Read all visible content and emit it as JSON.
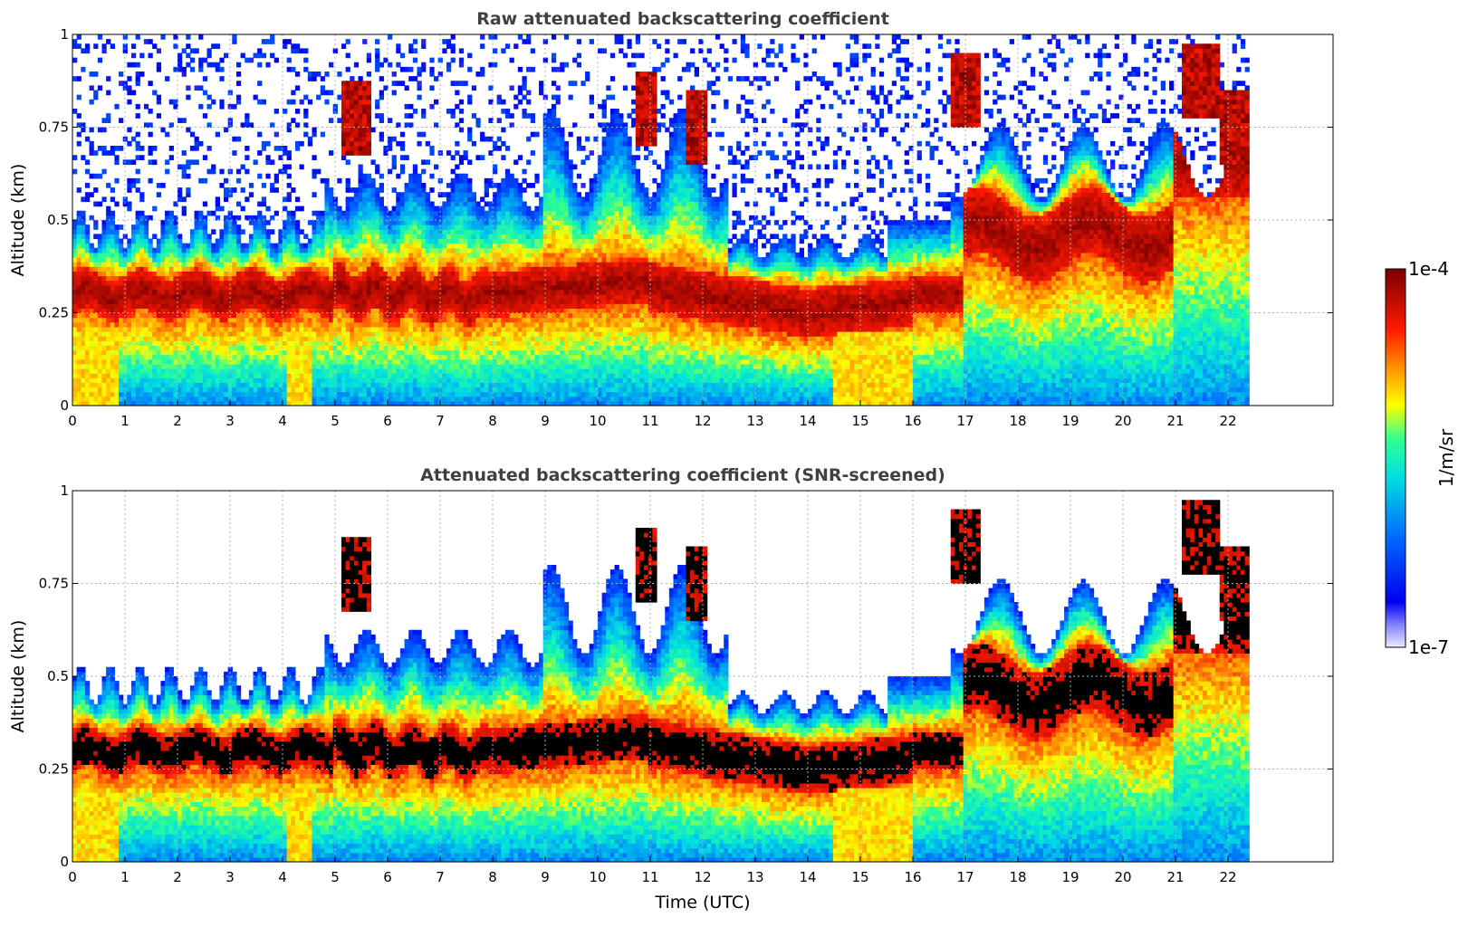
{
  "chart_data": [
    {
      "type": "heatmap",
      "title": "Raw attenuated backscattering coefficient",
      "xlabel": "",
      "ylabel": "Altitude (km)",
      "xlim": [
        0,
        24
      ],
      "ylim": [
        0,
        1
      ],
      "x_ticks": [
        "0",
        "1",
        "2",
        "3",
        "4",
        "5",
        "6",
        "7",
        "8",
        "9",
        "10",
        "11",
        "12",
        "13",
        "14",
        "15",
        "16",
        "17",
        "18",
        "19",
        "20",
        "21",
        "22"
      ],
      "y_ticks": [
        "0",
        "0.25",
        "0.5",
        "0.75",
        "1"
      ],
      "data_end_hour": 22.4,
      "grid": true,
      "screened": false
    },
    {
      "type": "heatmap",
      "title": "Attenuated backscattering coefficient (SNR-screened)",
      "xlabel": "Time (UTC)",
      "ylabel": "Altitude (km)",
      "xlim": [
        0,
        24
      ],
      "ylim": [
        0,
        1
      ],
      "x_ticks": [
        "0",
        "1",
        "2",
        "3",
        "4",
        "5",
        "6",
        "7",
        "8",
        "9",
        "10",
        "11",
        "12",
        "13",
        "14",
        "15",
        "16",
        "17",
        "18",
        "19",
        "20",
        "21",
        "22"
      ],
      "y_ticks": [
        "0",
        "0.25",
        "0.5",
        "0.75",
        "1"
      ],
      "data_end_hour": 22.4,
      "grid": true,
      "screened": true
    }
  ],
  "colorbar": {
    "label": "1/m/sr",
    "max_label": "1e-4",
    "min_label": "1e-7",
    "scale": "log",
    "range": [
      1e-07,
      0.0001
    ],
    "colormap": [
      "#ececff",
      "#0000ee",
      "#0070ff",
      "#00e0e0",
      "#30ff90",
      "#ffff00",
      "#ff9000",
      "#ff1a00",
      "#7a0000"
    ]
  }
}
